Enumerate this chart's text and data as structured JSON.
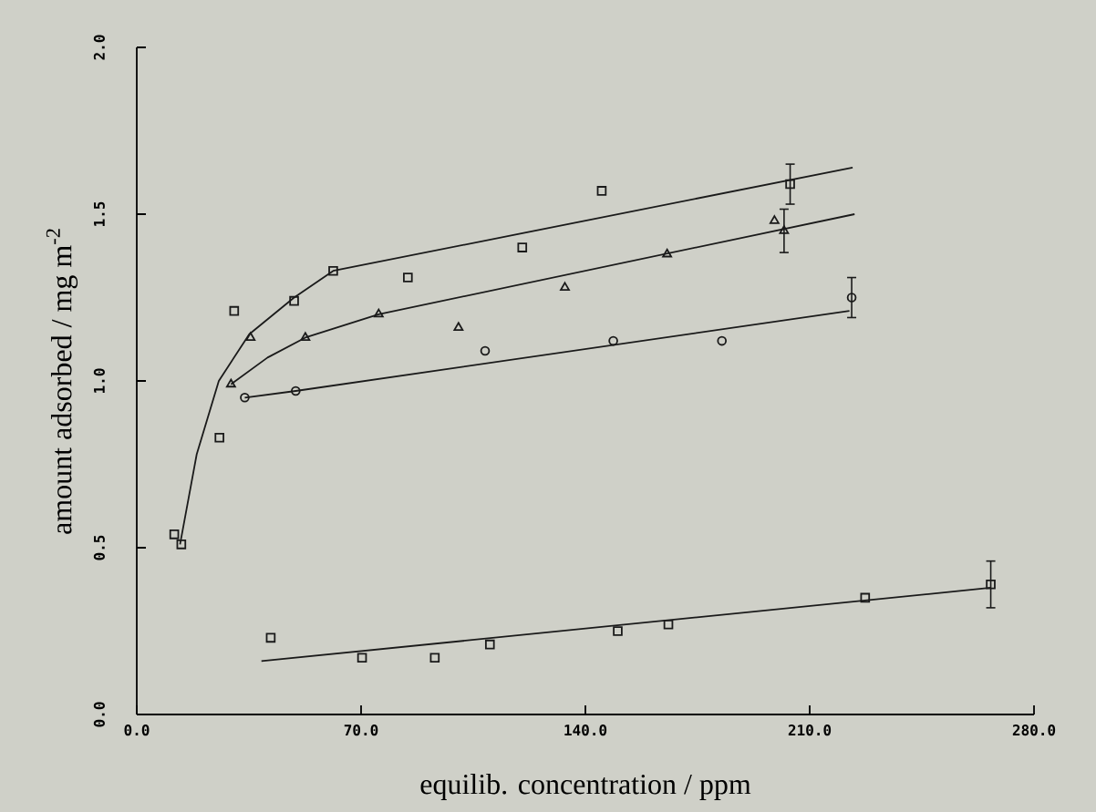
{
  "chart_data": {
    "type": "scatter",
    "xlabel": "equilib. concentration / ppm",
    "ylabel": "amount adsorbed / mg m$^{-2}$",
    "xlim": [
      0,
      280
    ],
    "ylim": [
      0,
      2
    ],
    "xticks": [
      {
        "value": 0,
        "label": "0.0"
      },
      {
        "value": 70,
        "label": "70.0"
      },
      {
        "value": 140,
        "label": "140.0"
      },
      {
        "value": 210,
        "label": "210.0"
      },
      {
        "value": 280,
        "label": "280.0"
      }
    ],
    "yticks": [
      {
        "value": 0,
        "label": "0.0"
      },
      {
        "value": 0.5,
        "label": "0.5"
      },
      {
        "value": 1,
        "label": "1.0"
      },
      {
        "value": 1.5,
        "label": "1.5"
      },
      {
        "value": 2,
        "label": "2.0"
      }
    ],
    "series": [
      {
        "marker": "square",
        "color": "#1a1a1a",
        "x": [
          11.7,
          13.9,
          25.8,
          30.4,
          49.1,
          61.3,
          84.6,
          120.3,
          145.1,
          203.9
        ],
        "values": [
          0.54,
          0.51,
          0.83,
          1.21,
          1.24,
          1.33,
          1.31,
          1.4,
          1.57,
          1.59
        ],
        "errors": [
          null,
          null,
          null,
          null,
          null,
          null,
          null,
          null,
          null,
          0.06
        ]
      },
      {
        "marker": "triangle",
        "color": "#1a1a1a",
        "x": [
          29.4,
          35.5,
          52.6,
          75.5,
          100.4,
          133.6,
          165.5,
          199.0,
          202.0
        ],
        "values": [
          0.99,
          1.13,
          1.13,
          1.2,
          1.16,
          1.28,
          1.38,
          1.48,
          1.45
        ],
        "errors": [
          null,
          null,
          null,
          null,
          null,
          null,
          null,
          null,
          0.065
        ]
      },
      {
        "marker": "circle",
        "color": "#1a1a1a",
        "x": [
          33.7,
          49.6,
          108.7,
          148.7,
          182.6,
          223.1
        ],
        "values": [
          0.95,
          0.97,
          1.09,
          1.12,
          1.12,
          1.25
        ],
        "errors": [
          null,
          null,
          null,
          null,
          null,
          0.06
        ]
      },
      {
        "marker": "square",
        "color": "#1a1a1a",
        "x": [
          41.8,
          70.3,
          93.0,
          110.2,
          150.1,
          165.9,
          227.3,
          266.5
        ],
        "values": [
          0.23,
          0.17,
          0.17,
          0.21,
          0.25,
          0.27,
          0.35,
          0.39
        ],
        "errors": [
          null,
          null,
          null,
          null,
          null,
          null,
          null,
          0.07
        ]
      },
      {
        "type": "line",
        "color": "#1a1a1a",
        "x": [
          13.5,
          18.7,
          25.6,
          35.1,
          49.1,
          61.3,
          223.4
        ],
        "values": [
          0.51,
          0.78,
          1.0,
          1.14,
          1.25,
          1.33,
          1.64
        ]
      },
      {
        "type": "line",
        "color": "#1a1a1a",
        "x": [
          29.4,
          40.8,
          52.6,
          75.5,
          224.0
        ],
        "values": [
          0.99,
          1.07,
          1.13,
          1.2,
          1.5
        ]
      },
      {
        "type": "line",
        "color": "#1a1a1a",
        "x": [
          33.7,
          49.6,
          222.4
        ],
        "values": [
          0.95,
          0.97,
          1.21
        ]
      },
      {
        "type": "line",
        "color": "#1a1a1a",
        "x": [
          38.9,
          266.5
        ],
        "values": [
          0.16,
          0.38
        ]
      }
    ]
  }
}
